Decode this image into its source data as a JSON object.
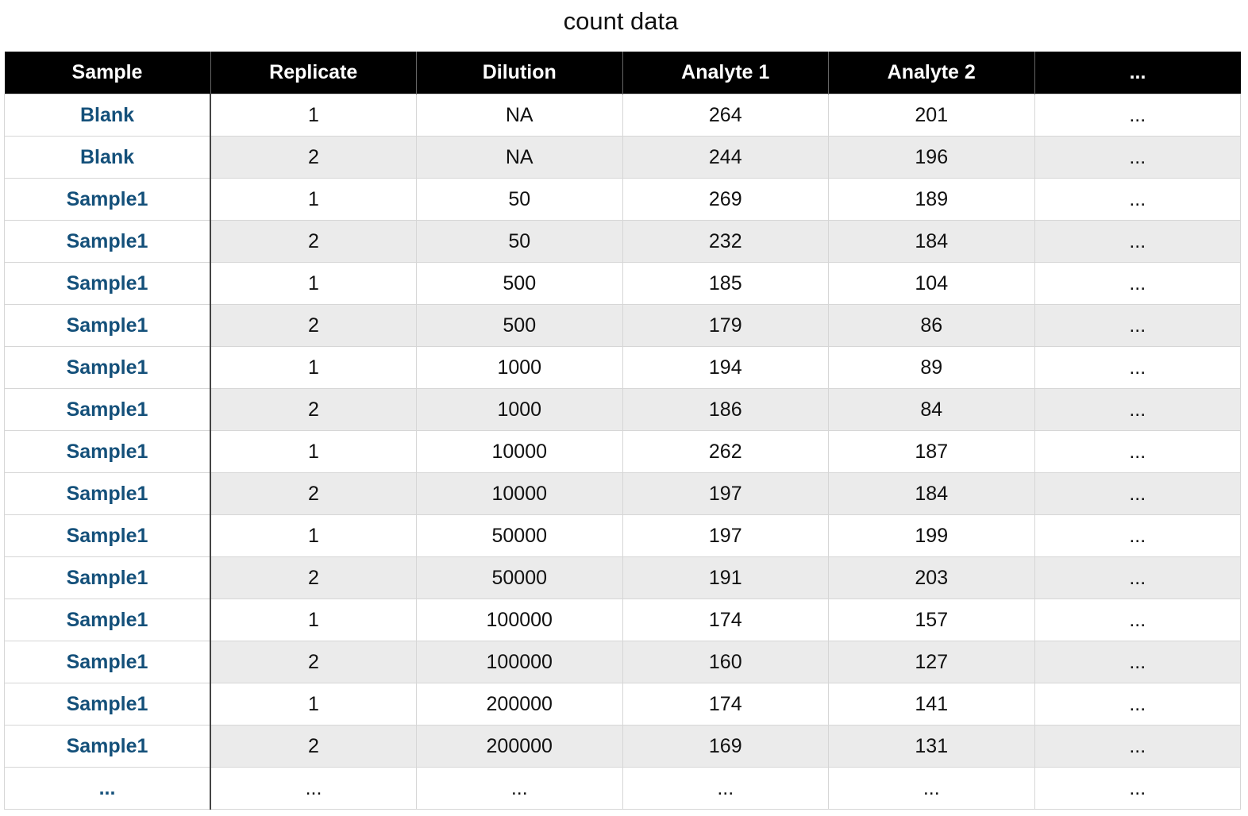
{
  "title": "count data",
  "table": {
    "headers": [
      "Sample",
      "Replicate",
      "Dilution",
      "Analyte 1",
      "Analyte 2",
      "..."
    ],
    "rows": [
      [
        "Blank",
        "1",
        "NA",
        "264",
        "201",
        "..."
      ],
      [
        "Blank",
        "2",
        "NA",
        "244",
        "196",
        "..."
      ],
      [
        "Sample1",
        "1",
        "50",
        "269",
        "189",
        "..."
      ],
      [
        "Sample1",
        "2",
        "50",
        "232",
        "184",
        "..."
      ],
      [
        "Sample1",
        "1",
        "500",
        "185",
        "104",
        "..."
      ],
      [
        "Sample1",
        "2",
        "500",
        "179",
        "86",
        "..."
      ],
      [
        "Sample1",
        "1",
        "1000",
        "194",
        "89",
        "..."
      ],
      [
        "Sample1",
        "2",
        "1000",
        "186",
        "84",
        "..."
      ],
      [
        "Sample1",
        "1",
        "10000",
        "262",
        "187",
        "..."
      ],
      [
        "Sample1",
        "2",
        "10000",
        "197",
        "184",
        "..."
      ],
      [
        "Sample1",
        "1",
        "50000",
        "197",
        "199",
        "..."
      ],
      [
        "Sample1",
        "2",
        "50000",
        "191",
        "203",
        "..."
      ],
      [
        "Sample1",
        "1",
        "100000",
        "174",
        "157",
        "..."
      ],
      [
        "Sample1",
        "2",
        "100000",
        "160",
        "127",
        "..."
      ],
      [
        "Sample1",
        "1",
        "200000",
        "174",
        "141",
        "..."
      ],
      [
        "Sample1",
        "2",
        "200000",
        "169",
        "131",
        "..."
      ],
      [
        "...",
        "...",
        "...",
        "...",
        "...",
        "..."
      ]
    ]
  },
  "colors": {
    "header_bg": "#000000",
    "header_text": "#ffffff",
    "sample_text": "#14507a",
    "stripe_bg": "#ebebeb"
  }
}
